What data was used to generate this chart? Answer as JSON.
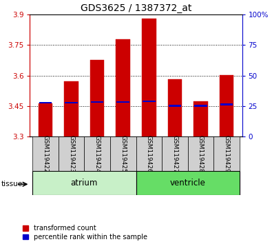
{
  "title": "GDS3625 / 1387372_at",
  "samples": [
    "GSM119422",
    "GSM119423",
    "GSM119424",
    "GSM119425",
    "GSM119426",
    "GSM119427",
    "GSM119428",
    "GSM119429"
  ],
  "bar_tops": [
    3.463,
    3.572,
    3.678,
    3.778,
    3.882,
    3.582,
    3.472,
    3.602
  ],
  "bar_bottom": 3.3,
  "blue_values": [
    3.466,
    3.466,
    3.47,
    3.47,
    3.474,
    3.452,
    3.452,
    3.458
  ],
  "ylim_left": [
    3.3,
    3.9
  ],
  "ylim_right": [
    0,
    100
  ],
  "yticks_left": [
    3.3,
    3.45,
    3.6,
    3.75,
    3.9
  ],
  "yticks_left_labels": [
    "3.3",
    "3.45",
    "3.6",
    "3.75",
    "3.9"
  ],
  "yticks_right": [
    0,
    25,
    50,
    75,
    100
  ],
  "yticks_right_labels": [
    "0",
    "25",
    "50",
    "75",
    "100%"
  ],
  "tissue_groups": [
    {
      "label": "atrium",
      "samples": [
        0,
        1,
        2,
        3
      ],
      "color": "#c8f0c8"
    },
    {
      "label": "ventricle",
      "samples": [
        4,
        5,
        6,
        7
      ],
      "color": "#66dd66"
    }
  ],
  "bar_color": "#cc0000",
  "blue_color": "#0000cc",
  "plot_bg": "#ffffff",
  "left_axis_color": "#cc0000",
  "right_axis_color": "#0000cc",
  "legend_red_label": "transformed count",
  "legend_blue_label": "percentile rank within the sample",
  "bar_width": 0.55
}
